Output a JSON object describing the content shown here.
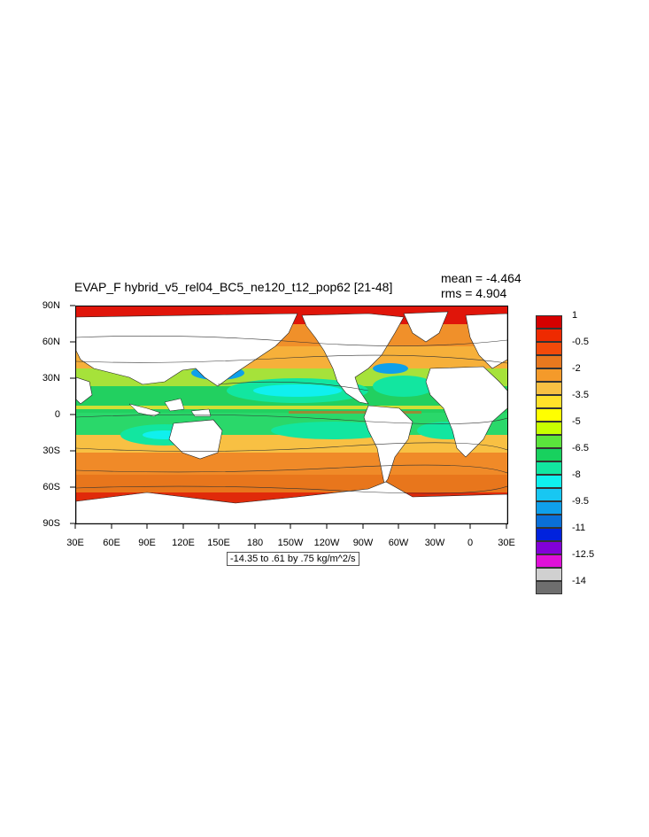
{
  "title": "EVAP_F hybrid_v5_rel04_BC5_ne120_t12_pop62 [21-48]",
  "stats": {
    "mean": "mean = -4.464",
    "rms": "rms = 4.904"
  },
  "lat_labels": [
    "90N",
    "60N",
    "30N",
    "0",
    "30S",
    "60S",
    "90S"
  ],
  "lon_labels": [
    "30E",
    "60E",
    "90E",
    "120E",
    "150E",
    "180",
    "150W",
    "120W",
    "90W",
    "60W",
    "30W",
    "0",
    "30E"
  ],
  "range_label": "-14.35 to .61 by .75 kg/m^2/s",
  "colorbar": {
    "labels": [
      "1",
      "-0.5",
      "-2",
      "-3.5",
      "-5",
      "-6.5",
      "-8",
      "-9.5",
      "-11",
      "-12.5",
      "-14"
    ],
    "colors": [
      "#d50000",
      "#ee2a00",
      "#f24a0a",
      "#e8781e",
      "#f49a2a",
      "#f8c043",
      "#ffe12a",
      "#ffff00",
      "#c8ff00",
      "#5be43c",
      "#18d15e",
      "#12e6a0",
      "#10f0ee",
      "#18c7f2",
      "#0fa0ea",
      "#0a6fd8",
      "#0022dd",
      "#8200d8",
      "#e010d8",
      "#d0d0d0",
      "#6e6e6e"
    ]
  }
}
